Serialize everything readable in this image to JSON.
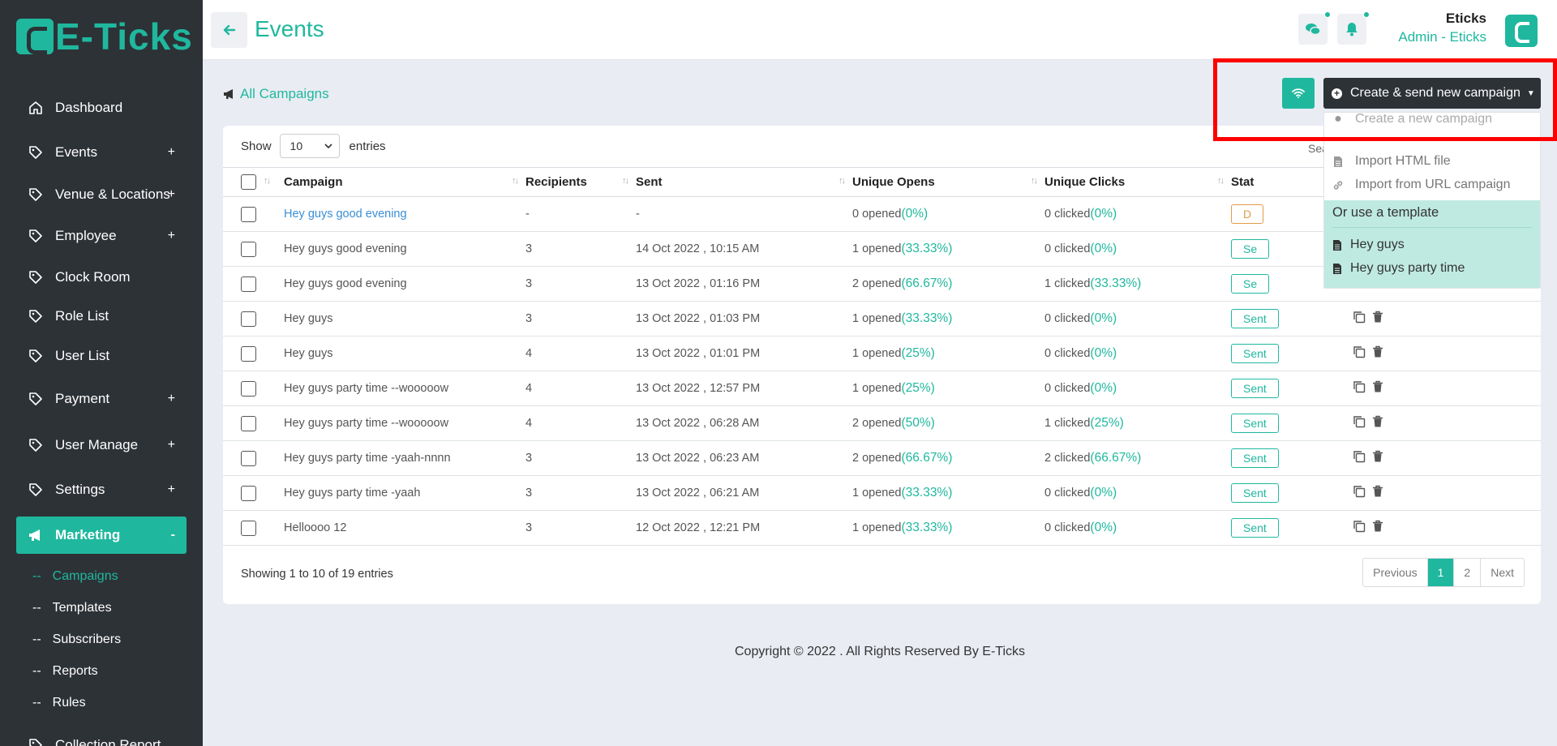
{
  "brand": {
    "name": "E-Ticks"
  },
  "header": {
    "title": "Events",
    "user_name": "Eticks",
    "user_role": "Admin - Eticks"
  },
  "sidebar": {
    "items": [
      {
        "label": "Dashboard",
        "icon": "home-icon",
        "toggle": ""
      },
      {
        "label": "Events",
        "icon": "tag-icon",
        "toggle": "+"
      },
      {
        "label": "Venue & Locations",
        "icon": "tag-icon",
        "toggle": "+"
      },
      {
        "label": "Employee",
        "icon": "tag-icon",
        "toggle": "+"
      },
      {
        "label": "Clock Room",
        "icon": "tag-icon",
        "toggle": ""
      },
      {
        "label": "Role List",
        "icon": "tag-icon",
        "toggle": ""
      },
      {
        "label": "User List",
        "icon": "tag-icon",
        "toggle": ""
      },
      {
        "label": "Payment",
        "icon": "tag-icon",
        "toggle": "+"
      },
      {
        "label": "User Manage",
        "icon": "tag-icon",
        "toggle": "+"
      },
      {
        "label": "Settings",
        "icon": "tag-icon",
        "toggle": "+"
      },
      {
        "label": "Marketing",
        "icon": "megaphone-icon",
        "toggle": "-"
      }
    ],
    "subitems": [
      {
        "dash": "--",
        "label": "Campaigns"
      },
      {
        "dash": "--",
        "label": "Templates"
      },
      {
        "dash": "--",
        "label": "Subscribers"
      },
      {
        "dash": "--",
        "label": "Reports"
      },
      {
        "dash": "--",
        "label": "Rules"
      }
    ],
    "bottom_item": "Collection Report"
  },
  "toolbar": {
    "all_campaigns": "All Campaigns",
    "create_button": "Create & send new campaign"
  },
  "dropdown": {
    "create_new": "Create a new campaign",
    "import_html": "Import HTML file",
    "import_url": "Import from URL campaign",
    "template_heading": "Or use a template",
    "templates": [
      "Hey guys",
      "Hey guys party time"
    ]
  },
  "table": {
    "show_label": "Show",
    "entries_value": "10",
    "entries_label": "entries",
    "search_label": "Sea",
    "columns": [
      "Campaign",
      "Recipients",
      "Sent",
      "Unique Opens",
      "Unique Clicks",
      "Stat"
    ],
    "rows": [
      {
        "campaign": "Hey guys good evening",
        "recipients": "-",
        "sent": "-",
        "opens": "0 opened",
        "opens_pct": "(0%)",
        "clicks": "0 clicked",
        "clicks_pct": "(0%)",
        "status": "D"
      },
      {
        "campaign": "Hey guys good evening",
        "recipients": "3",
        "sent": "14 Oct 2022 , 10:15 AM",
        "opens": "1 opened",
        "opens_pct": "(33.33%)",
        "clicks": "0 clicked",
        "clicks_pct": "(0%)",
        "status": "Se"
      },
      {
        "campaign": "Hey guys good evening",
        "recipients": "3",
        "sent": "13 Oct 2022 , 01:16 PM",
        "opens": "2 opened",
        "opens_pct": "(66.67%)",
        "clicks": "1 clicked",
        "clicks_pct": "(33.33%)",
        "status": "Se"
      },
      {
        "campaign": "Hey guys",
        "recipients": "3",
        "sent": "13 Oct 2022 , 01:03 PM",
        "opens": "1 opened",
        "opens_pct": "(33.33%)",
        "clicks": "0 clicked",
        "clicks_pct": "(0%)",
        "status": "Sent"
      },
      {
        "campaign": "Hey guys",
        "recipients": "4",
        "sent": "13 Oct 2022 , 01:01 PM",
        "opens": "1 opened",
        "opens_pct": "(25%)",
        "clicks": "0 clicked",
        "clicks_pct": "(0%)",
        "status": "Sent"
      },
      {
        "campaign": "Hey guys party time --wooooow",
        "recipients": "4",
        "sent": "13 Oct 2022 , 12:57 PM",
        "opens": "1 opened",
        "opens_pct": "(25%)",
        "clicks": "0 clicked",
        "clicks_pct": "(0%)",
        "status": "Sent"
      },
      {
        "campaign": "Hey guys party time --wooooow",
        "recipients": "4",
        "sent": "13 Oct 2022 , 06:28 AM",
        "opens": "2 opened",
        "opens_pct": "(50%)",
        "clicks": "1 clicked",
        "clicks_pct": "(25%)",
        "status": "Sent"
      },
      {
        "campaign": "Hey guys party time -yaah-nnnn",
        "recipients": "3",
        "sent": "13 Oct 2022 , 06:23 AM",
        "opens": "2 opened",
        "opens_pct": "(66.67%)",
        "clicks": "2 clicked",
        "clicks_pct": "(66.67%)",
        "status": "Sent"
      },
      {
        "campaign": "Hey guys party time -yaah",
        "recipients": "3",
        "sent": "13 Oct 2022 , 06:21 AM",
        "opens": "1 opened",
        "opens_pct": "(33.33%)",
        "clicks": "0 clicked",
        "clicks_pct": "(0%)",
        "status": "Sent"
      },
      {
        "campaign": "Helloooo 12",
        "recipients": "3",
        "sent": "12 Oct 2022 , 12:21 PM",
        "opens": "1 opened",
        "opens_pct": "(33.33%)",
        "clicks": "0 clicked",
        "clicks_pct": "(0%)",
        "status": "Sent"
      }
    ],
    "info": "Showing 1 to 10 of 19 entries"
  },
  "pagination": {
    "previous": "Previous",
    "pages": [
      "1",
      "2"
    ],
    "next": "Next"
  },
  "footer": {
    "copyright": "Copyright © 2022 . All Rights Reserved By E-Ticks"
  },
  "colors": {
    "accent": "#1fb89e",
    "sidebar": "#2d3237",
    "highlight": "#ff0000",
    "link": "#3a8fd6"
  }
}
